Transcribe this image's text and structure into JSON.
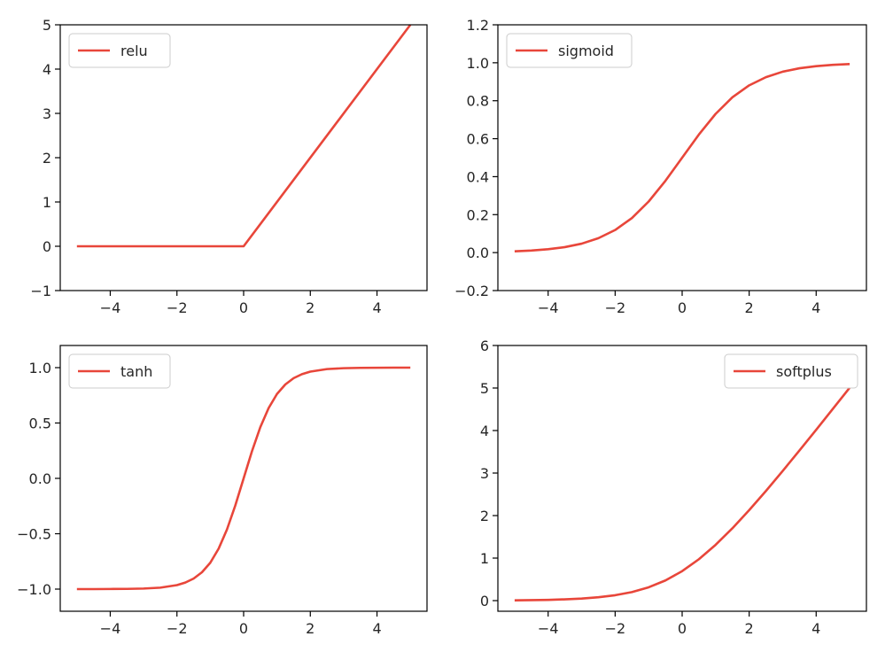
{
  "line_color": "#e8463a",
  "chart_data": [
    {
      "type": "line",
      "xlim": [
        -5.5,
        5.5
      ],
      "ylim": [
        -1,
        5
      ],
      "xticks": [
        -4,
        -2,
        0,
        2,
        4
      ],
      "xtick_labels": [
        "−4",
        "−2",
        "0",
        "2",
        "4"
      ],
      "yticks": [
        -1,
        0,
        1,
        2,
        3,
        4,
        5
      ],
      "ytick_labels": [
        "−1",
        "0",
        "1",
        "2",
        "3",
        "4",
        "5"
      ],
      "legend_position": "upper left",
      "series": [
        {
          "name": "relu",
          "x": [
            -5,
            0,
            5
          ],
          "y": [
            0,
            0,
            5
          ]
        }
      ]
    },
    {
      "type": "line",
      "xlim": [
        -5.5,
        5.5
      ],
      "ylim": [
        -0.2,
        1.2
      ],
      "xticks": [
        -4,
        -2,
        0,
        2,
        4
      ],
      "xtick_labels": [
        "−4",
        "−2",
        "0",
        "2",
        "4"
      ],
      "yticks": [
        -0.2,
        0.0,
        0.2,
        0.4,
        0.6,
        0.8,
        1.0,
        1.2
      ],
      "ytick_labels": [
        "−0.2",
        "0.0",
        "0.2",
        "0.4",
        "0.6",
        "0.8",
        "1.0",
        "1.2"
      ],
      "legend_position": "upper left",
      "series": [
        {
          "name": "sigmoid",
          "x": [
            -5,
            -4.5,
            -4,
            -3.5,
            -3,
            -2.5,
            -2,
            -1.5,
            -1,
            -0.5,
            0,
            0.5,
            1,
            1.5,
            2,
            2.5,
            3,
            3.5,
            4,
            4.5,
            5
          ],
          "y": [
            0.007,
            0.011,
            0.018,
            0.029,
            0.047,
            0.076,
            0.119,
            0.182,
            0.269,
            0.378,
            0.5,
            0.622,
            0.731,
            0.818,
            0.881,
            0.924,
            0.953,
            0.971,
            0.982,
            0.989,
            0.993
          ]
        }
      ]
    },
    {
      "type": "line",
      "xlim": [
        -5.5,
        5.5
      ],
      "ylim": [
        -1.2,
        1.2
      ],
      "xticks": [
        -4,
        -2,
        0,
        2,
        4
      ],
      "xtick_labels": [
        "−4",
        "−2",
        "0",
        "2",
        "4"
      ],
      "yticks": [
        -1.0,
        -0.5,
        0.0,
        0.5,
        1.0
      ],
      "ytick_labels": [
        "−1.0",
        "−0.5",
        "0.0",
        "0.5",
        "1.0"
      ],
      "legend_position": "upper left",
      "series": [
        {
          "name": "tanh",
          "x": [
            -5,
            -4.5,
            -4,
            -3.5,
            -3,
            -2.5,
            -2,
            -1.75,
            -1.5,
            -1.25,
            -1,
            -0.75,
            -0.5,
            -0.25,
            0,
            0.25,
            0.5,
            0.75,
            1,
            1.25,
            1.5,
            1.75,
            2,
            2.5,
            3,
            3.5,
            4,
            4.5,
            5
          ],
          "y": [
            -1.0,
            -1.0,
            -0.999,
            -0.998,
            -0.995,
            -0.987,
            -0.964,
            -0.941,
            -0.905,
            -0.848,
            -0.762,
            -0.635,
            -0.462,
            -0.245,
            0,
            0.245,
            0.462,
            0.635,
            0.762,
            0.848,
            0.905,
            0.941,
            0.964,
            0.987,
            0.995,
            0.998,
            0.999,
            1.0,
            1.0
          ]
        }
      ]
    },
    {
      "type": "line",
      "xlim": [
        -5.5,
        5.5
      ],
      "ylim": [
        -0.25,
        6
      ],
      "xticks": [
        -4,
        -2,
        0,
        2,
        4
      ],
      "xtick_labels": [
        "−4",
        "−2",
        "0",
        "2",
        "4"
      ],
      "yticks": [
        0,
        1,
        2,
        3,
        4,
        5,
        6
      ],
      "ytick_labels": [
        "0",
        "1",
        "2",
        "3",
        "4",
        "5",
        "6"
      ],
      "legend_position": "upper right",
      "series": [
        {
          "name": "softplus",
          "x": [
            -5,
            -4.5,
            -4,
            -3.5,
            -3,
            -2.5,
            -2,
            -1.5,
            -1,
            -0.5,
            0,
            0.5,
            1,
            1.5,
            2,
            2.5,
            3,
            3.5,
            4,
            4.5,
            5
          ],
          "y": [
            0.007,
            0.011,
            0.018,
            0.03,
            0.049,
            0.079,
            0.127,
            0.201,
            0.313,
            0.474,
            0.693,
            0.974,
            1.313,
            1.701,
            2.127,
            2.579,
            3.049,
            3.53,
            4.018,
            4.511,
            5.007
          ]
        }
      ]
    }
  ]
}
